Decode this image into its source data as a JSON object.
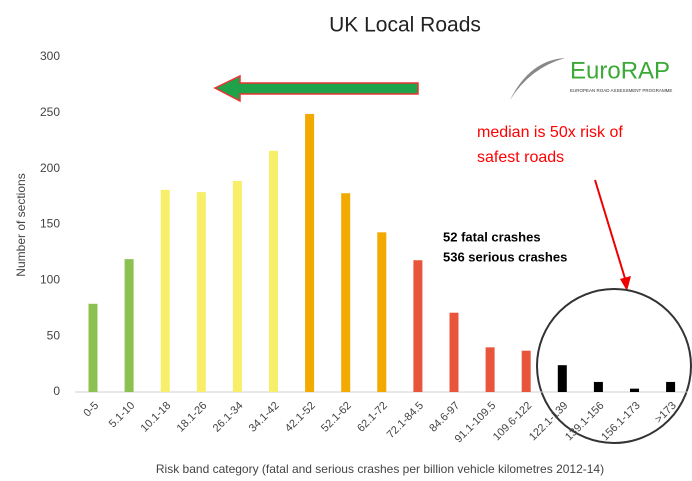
{
  "chart_data": {
    "type": "bar",
    "title": "UK Local Roads",
    "categories": [
      "0-5",
      "5.1-10",
      "10.1-18",
      "18.1-26",
      "26.1-34",
      "34.1-42",
      "42.1-52",
      "52.1-62",
      "62.1-72",
      "72.1-84.5",
      "84.6-97",
      "91.1-109.5",
      "109.6-122",
      "122.1-139",
      "139.1-156",
      "156.1-173",
      ">173"
    ],
    "values": [
      79,
      119,
      181,
      179,
      189,
      216,
      249,
      178,
      143,
      118,
      71,
      40,
      37,
      24,
      9,
      3,
      9
    ],
    "colors": [
      "#8cc152",
      "#8cc152",
      "#f7ee6a",
      "#f7ee6a",
      "#f7ee6a",
      "#f7ee6a",
      "#f2a900",
      "#f2a900",
      "#f2a900",
      "#e9553b",
      "#e9553b",
      "#e9553b",
      "#e9553b",
      "#000000",
      "#000000",
      "#000000",
      "#000000"
    ],
    "ylim": [
      0,
      300
    ],
    "yticks": [
      0,
      50,
      100,
      150,
      200,
      250,
      300
    ],
    "y_label": "Number of sections",
    "x_label": "Risk band category (fatal and serious crashes per billion vehicle kilometres 2012-14)",
    "annotations": [
      "52 fatal crashes",
      "536 serious crashes",
      "median is 50x risk of",
      "safest roads"
    ],
    "logo": {
      "name": "EuroRAP",
      "subtitle": "EUROPEAN ROAD ASSESSMENT PROGRAMME"
    }
  }
}
